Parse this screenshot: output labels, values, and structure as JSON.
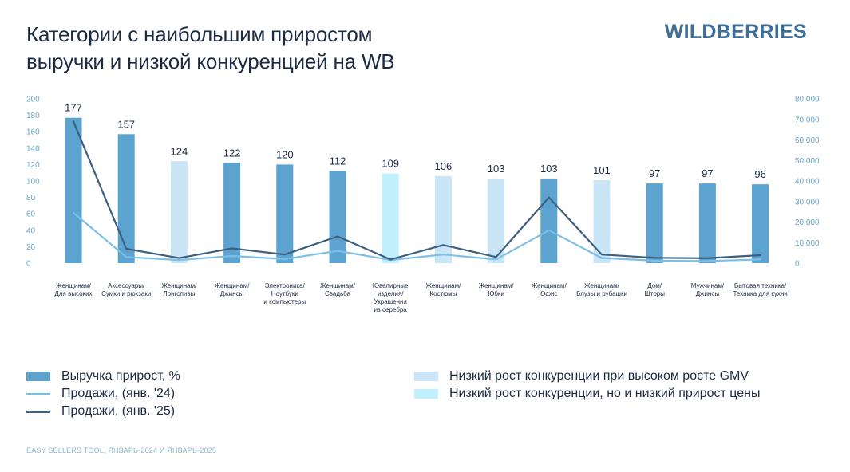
{
  "header": {
    "title_line1": "Категории с наибольшим приростом",
    "title_line2": "выручки и низкой конкуренцией на WB",
    "brand": "WILDBERRIES"
  },
  "chart_data": {
    "type": "bar",
    "categories": [
      [
        "Женщинам/",
        "Для высоких"
      ],
      [
        "Аксессуары/",
        "Сумки и рюкзаки"
      ],
      [
        "Женщинам/",
        "Лонгсливы"
      ],
      [
        "Женщинам/",
        "Джинсы"
      ],
      [
        "Электроника/",
        "Ноутбуки",
        "и компьютеры"
      ],
      [
        "Женщинам/",
        "Свадьба"
      ],
      [
        "Ювелирные",
        "изделия/",
        "Украшения",
        "из серебра"
      ],
      [
        "Женщинам/",
        "Костюмы"
      ],
      [
        "Женщинам/",
        "Юбки"
      ],
      [
        "Женщинам/",
        "Офис"
      ],
      [
        "Женщинам/",
        "Блузы и рубашки"
      ],
      [
        "Дом/",
        "Шторы"
      ],
      [
        "Мужчинам/",
        "Джинсы"
      ],
      [
        "Бытовая техника/",
        "Техника для кухни"
      ]
    ],
    "bars": {
      "name": "Выручка прирост, %",
      "values": [
        177,
        157,
        124,
        122,
        120,
        112,
        109,
        106,
        103,
        103,
        101,
        97,
        97,
        96
      ],
      "groups": [
        "growth",
        "growth",
        "low_comp_high_gmv",
        "growth",
        "growth",
        "growth",
        "low_comp_low_price",
        "low_comp_high_gmv",
        "low_comp_high_gmv",
        "growth",
        "low_comp_high_gmv",
        "growth",
        "growth",
        "growth"
      ]
    },
    "lines": [
      {
        "name": "Продажи, (янв. '24)",
        "color": "#7cc0e8",
        "values": [
          24500,
          3000,
          1500,
          3500,
          2000,
          6000,
          1500,
          4200,
          1800,
          16000,
          2500,
          1200,
          1000,
          1800
        ]
      },
      {
        "name": "Продажи, (янв. '25)",
        "color": "#3d5f80",
        "values": [
          69000,
          7000,
          2500,
          7200,
          4200,
          13000,
          1800,
          8800,
          3000,
          32000,
          4200,
          2600,
          2400,
          3900
        ]
      }
    ],
    "y_left": {
      "ticks": [
        "200",
        "180",
        "160",
        "140",
        "120",
        "100",
        "80",
        "60",
        "40",
        "20",
        "0"
      ],
      "ylim": [
        0,
        200
      ]
    },
    "y_right": {
      "ticks": [
        "80 000",
        "70 000",
        "60 000",
        "50 000",
        "40 000",
        "30 000",
        "20 000",
        "10 000",
        "0"
      ],
      "ylim": [
        0,
        80000
      ]
    },
    "grid": false,
    "legend_position": "bottom"
  },
  "colors": {
    "growth": "#5da3d0",
    "low_comp_high_gmv": "#c9e5f6",
    "low_comp_low_price": "#bff0fb",
    "axis_text": "#6aa5c9",
    "label_text": "#1b2b44"
  },
  "legend": {
    "bars_label": "Выручка прирост, %",
    "line24_label": "Продажи, (янв. '24)",
    "line25_label": "Продажи, (янв. '25)",
    "high_gmv_label": "Низкий рост конкуренции при высоком росте GMV",
    "low_price_label": "Низкий рост конкуренции, но и низкий прирост цены"
  },
  "footer": {
    "source": "EASY SELLERS TOOL, ЯНВАРЬ-2024 И ЯНВАРЬ-2025"
  }
}
